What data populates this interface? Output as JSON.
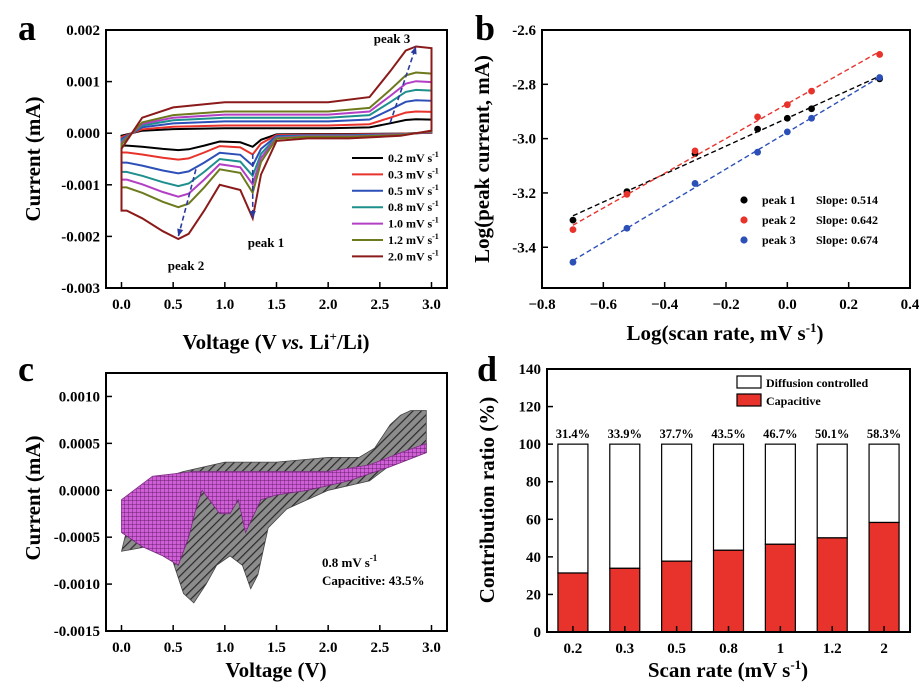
{
  "chart_data": [
    {
      "panel": "a",
      "type": "line",
      "xlabel": "Voltage (V vs. Li+/Li)",
      "xlabel_parts": [
        "Voltage (V ",
        "vs.",
        " Li",
        "+",
        "/Li)"
      ],
      "ylabel": "Current (mA)",
      "xlim": [
        -0.15,
        3.15
      ],
      "ylim": [
        -0.003,
        0.002
      ],
      "xticks": [
        0.0,
        0.5,
        1.0,
        1.5,
        2.0,
        2.5,
        3.0
      ],
      "xtick_labels": [
        "0.0",
        "0.5",
        "1.0",
        "1.5",
        "2.0",
        "2.5",
        "3.0"
      ],
      "yticks": [
        -0.003,
        -0.002,
        -0.001,
        0.0,
        0.001,
        0.002
      ],
      "ytick_labels": [
        "-0.003",
        "-0.002",
        "-0.001",
        "0.000",
        "0.001",
        "0.002"
      ],
      "legend_position": "lower-right",
      "series": [
        {
          "name": "0.2 mV s-1",
          "legend_main": "0.2 mV s",
          "legend_sup": "-1",
          "scale": 0.16,
          "color": "#000000"
        },
        {
          "name": "0.3 mV s-1",
          "legend_main": "0.3 mV s",
          "legend_sup": "-1",
          "scale": 0.25,
          "color": "#e8332c"
        },
        {
          "name": "0.5 mV s-1",
          "legend_main": "0.5 mV s",
          "legend_sup": "-1",
          "scale": 0.38,
          "color": "#2c4fb8"
        },
        {
          "name": "0.8 mV s-1",
          "legend_main": "0.8 mV s",
          "legend_sup": "-1",
          "scale": 0.5,
          "color": "#1d8f8c"
        },
        {
          "name": "1.0 mV s-1",
          "legend_main": "1.0 mV s",
          "legend_sup": "-1",
          "scale": 0.6,
          "color": "#b23fc4"
        },
        {
          "name": "1.2 mV s-1",
          "legend_main": "1.2 mV s",
          "legend_sup": "-1",
          "scale": 0.7,
          "color": "#6e7a1e"
        },
        {
          "name": "2.0 mV s-1",
          "legend_main": "2.0 mV s",
          "legend_sup": "-1",
          "scale": 1.0,
          "color": "#8b1a1a"
        }
      ],
      "reference_curve_2mV": {
        "cathodic": [
          [
            3.0,
            5e-05
          ],
          [
            2.7,
            -5e-05
          ],
          [
            2.2,
            -0.0001
          ],
          [
            1.8,
            -0.0001
          ],
          [
            1.5,
            -0.00015
          ],
          [
            1.35,
            -0.0008
          ],
          [
            1.27,
            -0.00165
          ],
          [
            1.15,
            -0.0011
          ],
          [
            0.95,
            -0.001
          ],
          [
            0.8,
            -0.0015
          ],
          [
            0.65,
            -0.00195
          ],
          [
            0.55,
            -0.00205
          ],
          [
            0.4,
            -0.0019
          ],
          [
            0.2,
            -0.00165
          ],
          [
            0.05,
            -0.0015
          ],
          [
            0.0,
            -0.0015
          ]
        ],
        "anodic": [
          [
            0.0,
            -0.0003
          ],
          [
            0.2,
            0.0003
          ],
          [
            0.5,
            0.0005
          ],
          [
            1.0,
            0.0006
          ],
          [
            1.5,
            0.0006
          ],
          [
            2.0,
            0.0006
          ],
          [
            2.4,
            0.0007
          ],
          [
            2.6,
            0.0012
          ],
          [
            2.75,
            0.0016
          ],
          [
            2.85,
            0.00168
          ],
          [
            3.0,
            0.00165
          ]
        ]
      },
      "annotations": [
        {
          "text": "peak 3",
          "x": 2.85,
          "y": 0.0017
        },
        {
          "text": "peak 1",
          "x": 1.27,
          "y": -0.00195
        },
        {
          "text": "peak 2",
          "x": 0.55,
          "y": -0.00233
        }
      ]
    },
    {
      "panel": "b",
      "type": "scatter",
      "xlabel": "Log(scan rate, mV s-1)",
      "xlabel_main": "Log(scan rate, mV s",
      "xlabel_sup": "-1",
      "xlabel_end": ")",
      "ylabel": "Log(peak current, mA)",
      "xlim": [
        -0.8,
        0.4
      ],
      "ylim": [
        -3.55,
        -2.6
      ],
      "xticks": [
        -0.8,
        -0.6,
        -0.4,
        -0.2,
        0.0,
        0.2,
        0.4
      ],
      "xtick_labels": [
        "−0.8",
        "−0.6",
        "−0.4",
        "−0.2",
        "0.0",
        "0.2",
        "0.4"
      ],
      "yticks": [
        -3.4,
        -3.2,
        -3.0,
        -2.8,
        -2.6
      ],
      "ytick_labels": [
        "-3.4",
        "-3.2",
        "-3.0",
        "-2.8",
        "-2.6"
      ],
      "legend_position": "lower-right",
      "x": [
        -0.699,
        -0.523,
        -0.301,
        -0.097,
        0.0,
        0.079,
        0.301
      ],
      "series": [
        {
          "name": "peak 1",
          "label": "peak 1",
          "slope_text": "Slope: 0.514",
          "color": "#000000",
          "values": [
            -3.3,
            -3.195,
            -3.055,
            -2.965,
            -2.925,
            -2.89,
            -2.78
          ]
        },
        {
          "name": "peak 2",
          "label": "peak 2",
          "slope_text": "Slope: 0.642",
          "color": "#e8332c",
          "values": [
            -3.335,
            -3.205,
            -3.045,
            -2.92,
            -2.875,
            -2.825,
            -2.69
          ]
        },
        {
          "name": "peak 3",
          "label": "peak 3",
          "slope_text": "Slope: 0.674",
          "color": "#2c4fb8",
          "values": [
            -3.455,
            -3.33,
            -3.165,
            -3.05,
            -2.975,
            -2.925,
            -2.775
          ]
        }
      ]
    },
    {
      "panel": "c",
      "type": "area",
      "xlabel": "Voltage (V)",
      "ylabel": "Current (mA)",
      "xlim": [
        -0.15,
        3.15
      ],
      "ylim": [
        -0.0015,
        0.00125
      ],
      "xticks": [
        0.0,
        0.5,
        1.0,
        1.5,
        2.0,
        2.5,
        3.0
      ],
      "xtick_labels": [
        "0.0",
        "0.5",
        "1.0",
        "1.5",
        "2.0",
        "2.5",
        "3.0"
      ],
      "yticks": [
        -0.0015,
        -0.001,
        -0.0005,
        0.0,
        0.0005,
        0.001
      ],
      "ytick_labels": [
        "-0.0015",
        "-0.0010",
        "-0.0005",
        "0.0000",
        "0.0005",
        "0.0010"
      ],
      "outer_top": [
        [
          0.0,
          -0.00065
        ],
        [
          0.1,
          -0.0002
        ],
        [
          0.3,
          0.0001
        ],
        [
          0.6,
          0.0002
        ],
        [
          1.0,
          0.0003
        ],
        [
          1.5,
          0.0003
        ],
        [
          2.0,
          0.00035
        ],
        [
          2.3,
          0.00035
        ],
        [
          2.45,
          0.00045
        ],
        [
          2.6,
          0.0007
        ],
        [
          2.7,
          0.0008
        ],
        [
          2.8,
          0.00085
        ],
        [
          2.95,
          0.00085
        ]
      ],
      "outer_bottom": [
        [
          2.95,
          0.0004
        ],
        [
          2.7,
          0.00035
        ],
        [
          2.4,
          0.0001
        ],
        [
          2.0,
          0.0
        ],
        [
          1.6,
          -0.0002
        ],
        [
          1.42,
          -0.0004
        ],
        [
          1.32,
          -0.0009
        ],
        [
          1.25,
          -0.00105
        ],
        [
          1.17,
          -0.0008
        ],
        [
          1.05,
          -0.0007
        ],
        [
          0.92,
          -0.0008
        ],
        [
          0.82,
          -0.001
        ],
        [
          0.7,
          -0.0012
        ],
        [
          0.6,
          -0.0011
        ],
        [
          0.45,
          -0.0006
        ],
        [
          0.25,
          -0.0006
        ],
        [
          0.0,
          -0.00065
        ]
      ],
      "inner_top": [
        [
          0.0,
          -0.0001
        ],
        [
          0.3,
          0.00015
        ],
        [
          0.7,
          0.0002
        ],
        [
          1.2,
          0.0002
        ],
        [
          1.6,
          0.0002
        ],
        [
          2.0,
          0.0002
        ],
        [
          2.4,
          0.00027
        ],
        [
          2.7,
          0.0004
        ],
        [
          2.95,
          0.0005
        ]
      ],
      "inner_bottom": [
        [
          2.95,
          0.0004
        ],
        [
          2.6,
          0.00025
        ],
        [
          2.2,
          0.0001
        ],
        [
          1.8,
          0.0
        ],
        [
          1.5,
          -5e-05
        ],
        [
          1.35,
          -0.0001
        ],
        [
          1.2,
          -0.00045
        ],
        [
          1.13,
          -0.0001
        ],
        [
          1.05,
          -0.00025
        ],
        [
          0.95,
          -0.00025
        ],
        [
          0.85,
          -0.0001
        ],
        [
          0.78,
          0.0
        ],
        [
          0.72,
          -0.0002
        ],
        [
          0.65,
          -0.0005
        ],
        [
          0.55,
          -0.0008
        ],
        [
          0.4,
          -0.0007
        ],
        [
          0.2,
          -0.0006
        ],
        [
          0.0,
          -0.00045
        ]
      ],
      "annotation_line1_main": "0.8 mV s",
      "annotation_line1_sup": "-1",
      "annotation_line2": "Capacitive: 43.5%"
    },
    {
      "panel": "d",
      "type": "bar",
      "xlabel": "Scan rate (mV s-1)",
      "xlabel_main": "Scan rate (mV s",
      "xlabel_sup": "-1",
      "xlabel_end": ")",
      "ylabel": "Contribution ratio (%)",
      "categories": [
        "0.2",
        "0.3",
        "0.5",
        "0.8",
        "1",
        "1.2",
        "2"
      ],
      "ylim": [
        0,
        140
      ],
      "yticks": [
        0,
        20,
        40,
        60,
        80,
        100,
        120,
        140
      ],
      "ytick_labels": [
        "0",
        "20",
        "40",
        "60",
        "80",
        "100",
        "120",
        "140"
      ],
      "legend_position": "top-right",
      "series": [
        {
          "name": "Diffusion controlled",
          "label": "Diffusion controlled",
          "color": "#ffffff",
          "values": [
            68.6,
            66.1,
            62.3,
            56.5,
            53.3,
            49.9,
            41.7
          ]
        },
        {
          "name": "Capacitive",
          "label": "Capacitive",
          "color": "#e8332c",
          "values": [
            31.4,
            33.9,
            37.7,
            43.5,
            46.7,
            50.1,
            58.3
          ]
        }
      ],
      "data_labels": [
        "31.4%",
        "33.9%",
        "37.7%",
        "43.5%",
        "46.7%",
        "50.1%",
        "58.3%"
      ]
    }
  ],
  "panel_labels": [
    "a",
    "b",
    "c",
    "d"
  ]
}
